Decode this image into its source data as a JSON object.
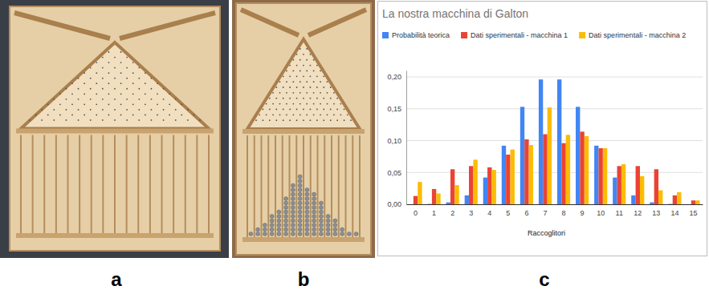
{
  "panel_labels": [
    "a",
    "b",
    "c"
  ],
  "chart_data": {
    "type": "bar",
    "title": "La nostra macchina di Galton",
    "x_label": "Raccoglitori",
    "categories": [
      "0",
      "1",
      "2",
      "3",
      "4",
      "5",
      "6",
      "7",
      "8",
      "9",
      "10",
      "11",
      "12",
      "13",
      "14",
      "15"
    ],
    "series": [
      {
        "name": "Probabilità teorica",
        "color": "#4285f4",
        "values": [
          0.0,
          0.0005,
          0.003,
          0.014,
          0.042,
          0.092,
          0.153,
          0.196,
          0.196,
          0.153,
          0.092,
          0.042,
          0.014,
          0.003,
          0.0005,
          0.0
        ]
      },
      {
        "name": "Dati sperimentali - macchina 1",
        "color": "#ea4335",
        "values": [
          0.013,
          0.024,
          0.055,
          0.06,
          0.058,
          0.078,
          0.102,
          0.11,
          0.096,
          0.114,
          0.088,
          0.06,
          0.06,
          0.055,
          0.014,
          0.006
        ]
      },
      {
        "name": "Dati sperimentali - macchina 2",
        "color": "#fbbc04",
        "values": [
          0.035,
          0.017,
          0.03,
          0.07,
          0.054,
          0.086,
          0.093,
          0.152,
          0.109,
          0.107,
          0.088,
          0.063,
          0.044,
          0.022,
          0.019,
          0.006
        ]
      }
    ],
    "ylim": [
      0,
      0.21
    ],
    "yticks": [
      {
        "value": 0,
        "label": "0,00"
      },
      {
        "value": 0.05,
        "label": "0,05"
      },
      {
        "value": 0.1,
        "label": "0,10"
      },
      {
        "value": 0.15,
        "label": "0,15"
      },
      {
        "value": 0.2,
        "label": "0,20"
      }
    ],
    "grid": true,
    "legend": "top"
  }
}
